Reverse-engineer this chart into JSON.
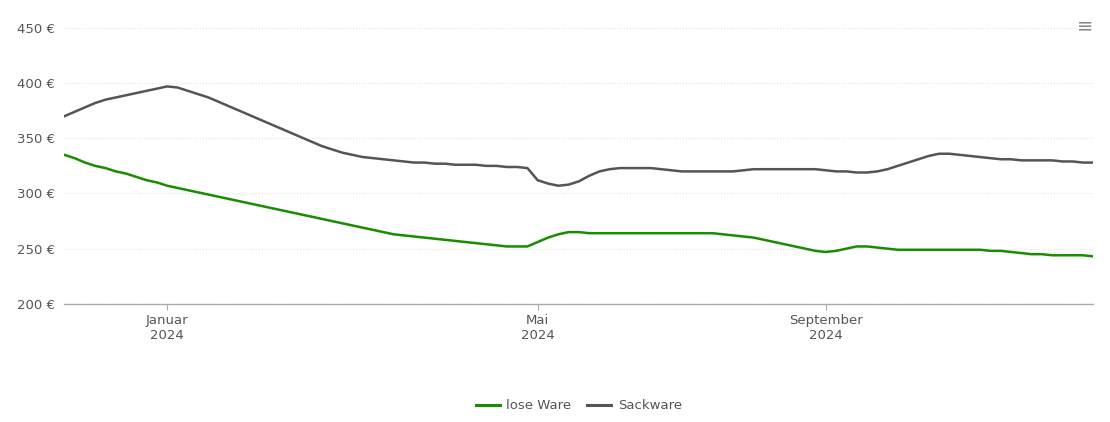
{
  "title": "",
  "ylabel": "",
  "xlabel": "",
  "ylim": [
    200,
    460
  ],
  "yticks": [
    200,
    250,
    300,
    350,
    400,
    450
  ],
  "ytick_labels": [
    "200 €",
    "250 €",
    "300 €",
    "350 €",
    "400 €",
    "450 €"
  ],
  "background_color": "#ffffff",
  "grid_color": "#e0e0e0",
  "lose_ware_color": "#1a8c00",
  "sackware_color": "#555555",
  "line_width": 1.8,
  "legend_labels": [
    "lose Ware",
    "Sackware"
  ],
  "x": [
    0,
    1,
    2,
    3,
    4,
    5,
    6,
    7,
    8,
    9,
    10,
    11,
    12,
    13,
    14,
    15,
    16,
    17,
    18,
    19,
    20,
    21,
    22,
    23,
    24,
    25,
    26,
    27,
    28,
    29,
    30,
    31,
    32,
    33,
    34,
    35,
    36,
    37,
    38,
    39,
    40,
    41,
    42,
    43,
    44,
    45,
    46,
    47,
    48,
    49,
    50,
    51,
    52,
    53,
    54,
    55,
    56,
    57,
    58,
    59,
    60,
    61,
    62,
    63,
    64,
    65,
    66,
    67,
    68,
    69,
    70,
    71,
    72,
    73,
    74,
    75,
    76,
    77,
    78,
    79,
    80,
    81,
    82,
    83,
    84,
    85,
    86,
    87,
    88,
    89,
    90,
    91,
    92,
    93,
    94,
    95,
    96,
    97,
    98,
    99,
    100
  ],
  "xtick_positions": [
    10,
    46,
    74
  ],
  "xtick_labels": [
    "Januar\n2024",
    "Mai\n2024",
    "September\n2024"
  ],
  "lose_ware": [
    335,
    332,
    328,
    325,
    323,
    320,
    318,
    315,
    312,
    310,
    307,
    305,
    303,
    301,
    299,
    297,
    295,
    293,
    291,
    289,
    287,
    285,
    283,
    281,
    279,
    277,
    275,
    273,
    271,
    269,
    267,
    265,
    263,
    262,
    261,
    260,
    259,
    258,
    257,
    256,
    255,
    254,
    253,
    252,
    252,
    252,
    256,
    260,
    263,
    265,
    265,
    264,
    264,
    264,
    264,
    264,
    264,
    264,
    264,
    264,
    264,
    264,
    264,
    264,
    263,
    262,
    261,
    260,
    258,
    256,
    254,
    252,
    250,
    248,
    247,
    248,
    250,
    252,
    252,
    251,
    250,
    249,
    249,
    249,
    249,
    249,
    249,
    249,
    249,
    249,
    248,
    248,
    247,
    246,
    245,
    245,
    244,
    244,
    244,
    244,
    243
  ],
  "sackware": [
    370,
    374,
    378,
    382,
    385,
    387,
    389,
    391,
    393,
    395,
    397,
    396,
    393,
    390,
    387,
    383,
    379,
    375,
    371,
    367,
    363,
    359,
    355,
    351,
    347,
    343,
    340,
    337,
    335,
    333,
    332,
    331,
    330,
    329,
    328,
    328,
    327,
    327,
    326,
    326,
    326,
    325,
    325,
    324,
    324,
    323,
    312,
    309,
    307,
    308,
    311,
    316,
    320,
    322,
    323,
    323,
    323,
    323,
    322,
    321,
    320,
    320,
    320,
    320,
    320,
    320,
    321,
    322,
    322,
    322,
    322,
    322,
    322,
    322,
    321,
    320,
    320,
    319,
    319,
    320,
    322,
    325,
    328,
    331,
    334,
    336,
    336,
    335,
    334,
    333,
    332,
    331,
    331,
    330,
    330,
    330,
    330,
    329,
    329,
    328,
    328
  ]
}
